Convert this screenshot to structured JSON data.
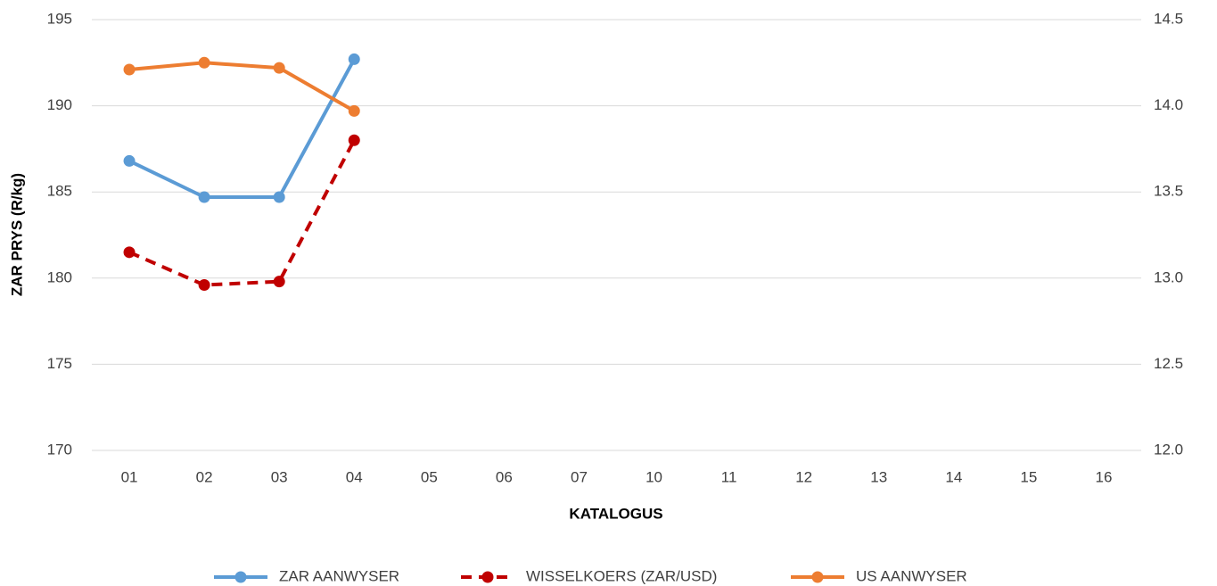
{
  "chart_data": {
    "type": "line",
    "ylabel": "ZAR PRYS (R/kg)",
    "xlabel": "KATALOGUS",
    "categories": [
      "01",
      "02",
      "03",
      "04",
      "05",
      "06",
      "07",
      "10",
      "11",
      "12",
      "13",
      "14",
      "15",
      "16"
    ],
    "ylim": [
      170,
      195
    ],
    "yticks": [
      170,
      175,
      180,
      185,
      190,
      195
    ],
    "y2lim": [
      12.0,
      14.5
    ],
    "y2ticks": [
      {
        "value": 12.0,
        "label": "12.0"
      },
      12.5,
      {
        "value": 13.0,
        "label": "13.0"
      },
      13.5,
      {
        "value": 14.0,
        "label": "14.0"
      },
      14.5
    ],
    "grid": true,
    "legend": "bottom",
    "series": [
      {
        "name": "ZAR AANWYSER",
        "color": "#5b9bd5",
        "line_style": "solid",
        "values": [
          186.8,
          184.7,
          184.7,
          192.7,
          null,
          null,
          null,
          null,
          null,
          null,
          null,
          null,
          null,
          null
        ]
      },
      {
        "name": "WISSELKOERS (ZAR/USD)",
        "color": "#c00000",
        "line_style": "dashed",
        "axis": "y2",
        "values": [
          13.15,
          12.96,
          12.98,
          13.8,
          null,
          null,
          null,
          null,
          null,
          null,
          null,
          null,
          null,
          null
        ]
      },
      {
        "name": "US AANWYSER",
        "color": "#ed7d31",
        "line_style": "solid",
        "values": [
          192.1,
          192.5,
          192.2,
          189.7,
          null,
          null,
          null,
          null,
          null,
          null,
          null,
          null,
          null,
          null
        ]
      }
    ]
  }
}
